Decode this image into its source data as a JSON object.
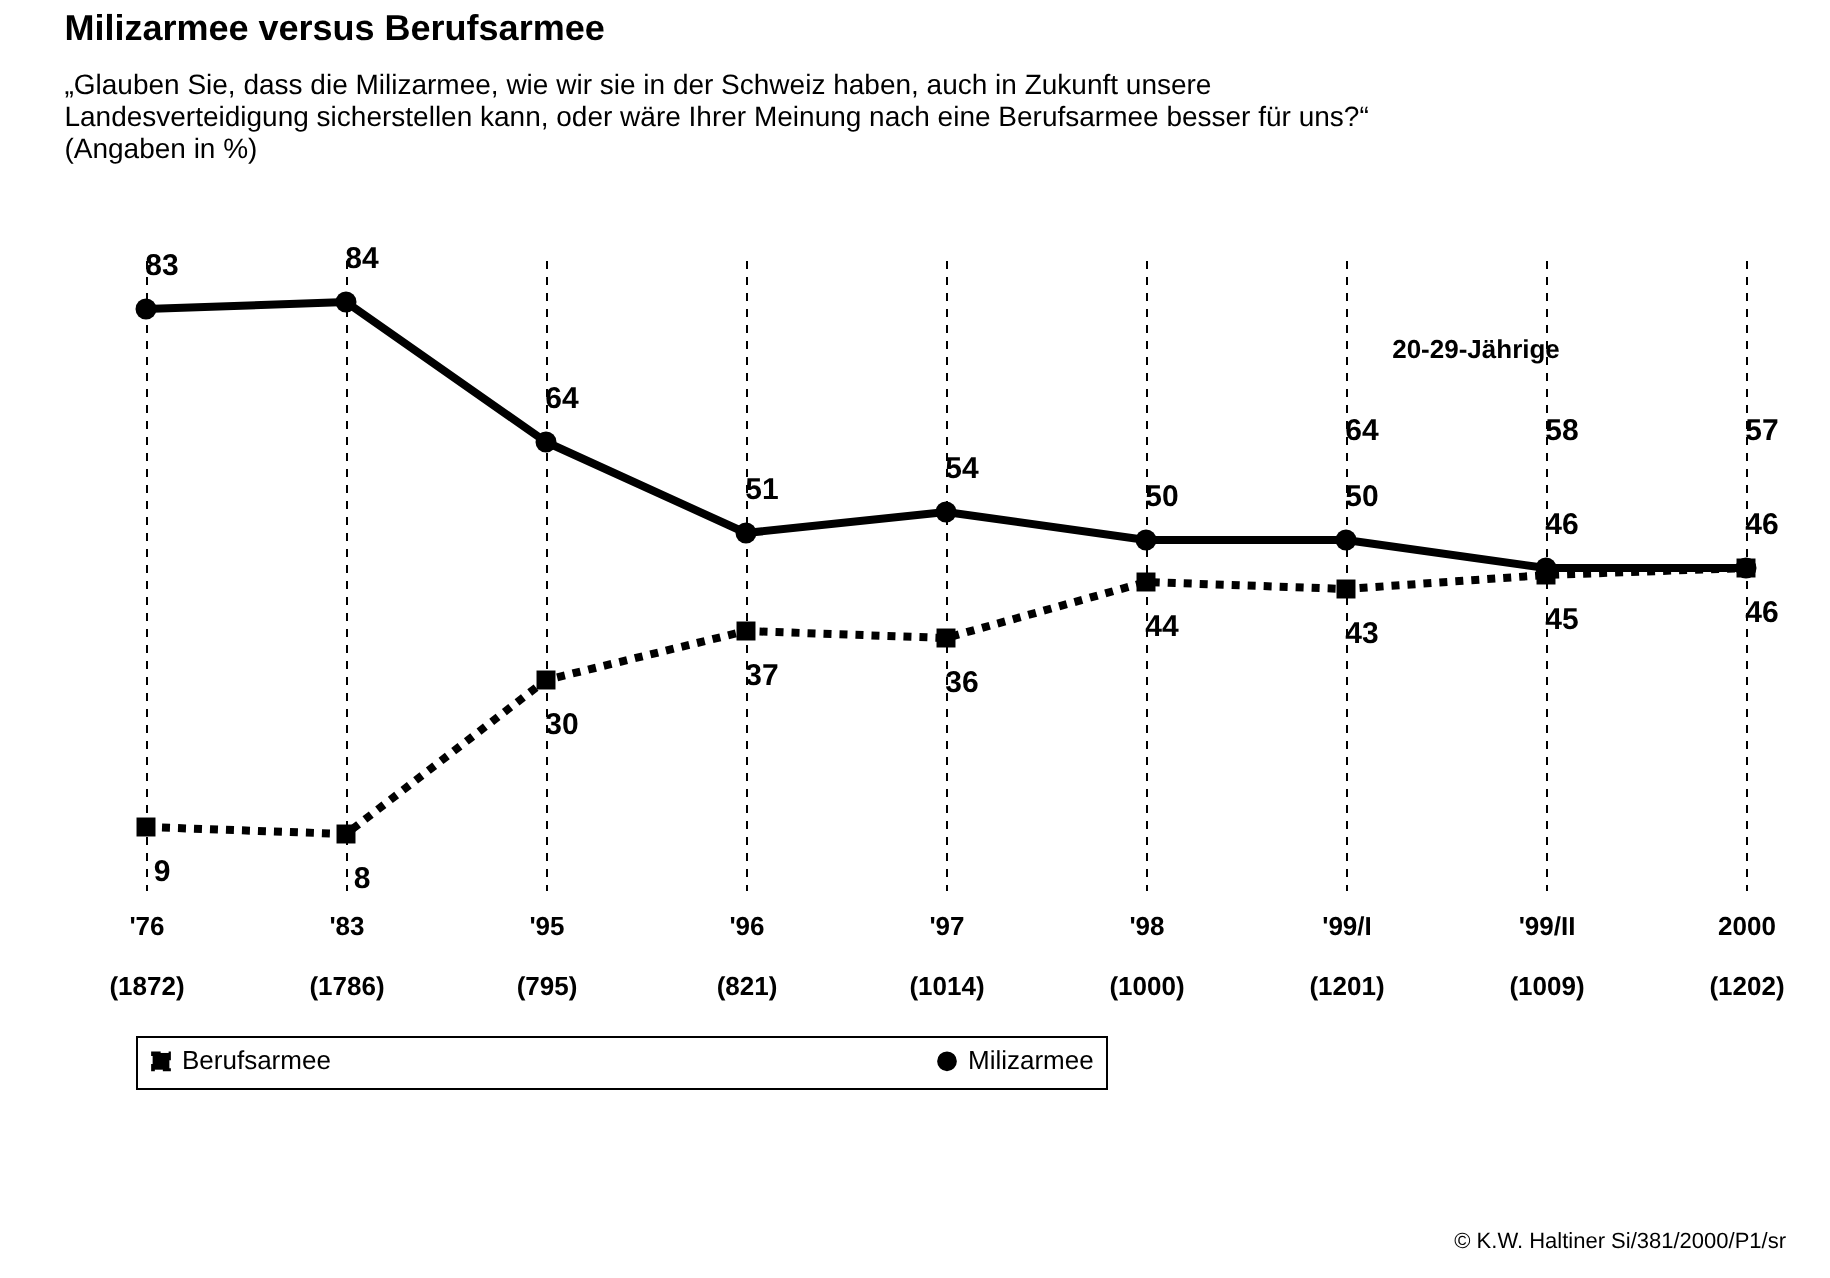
{
  "chart_data": {
    "type": "line",
    "title": "Milizarmee versus Berufsarmee",
    "subtitle": "„Glauben Sie, dass die Milizarmee, wie wir sie in der Schweiz haben, auch in Zukunft unsere\nLandesverteidigung sicherstellen kann, oder wäre Ihrer Meinung nach eine Berufsarmee besser für uns?“\n(Angaben in %)",
    "categories": [
      "'76\n(1872)",
      "'83\n(1786)",
      "'95\n(795)",
      "'96\n(821)",
      "'97\n(1014)",
      "'98\n(1000)",
      "'99/I\n(1201)",
      "'99/II\n(1009)",
      "2000\n(1202)"
    ],
    "series": [
      {
        "name": "Berufsarmee",
        "color": "#000000",
        "marker": "square",
        "line_style": "dotted",
        "values": [
          9,
          8,
          30,
          37,
          36,
          44,
          43,
          45,
          46
        ]
      },
      {
        "name": "Milizarmee",
        "color": "#000000",
        "marker": "circle",
        "line_style": "solid",
        "values": [
          83,
          84,
          64,
          51,
          54,
          50,
          50,
          46,
          46
        ]
      }
    ],
    "data_labels": true,
    "grid": "x",
    "legend": "bottom",
    "annotations": [
      "20-29-Jährige",
      "64",
      "58",
      "57",
      "© K.W. Haltiner Si/381/2000/P1/sr"
    ]
  }
}
